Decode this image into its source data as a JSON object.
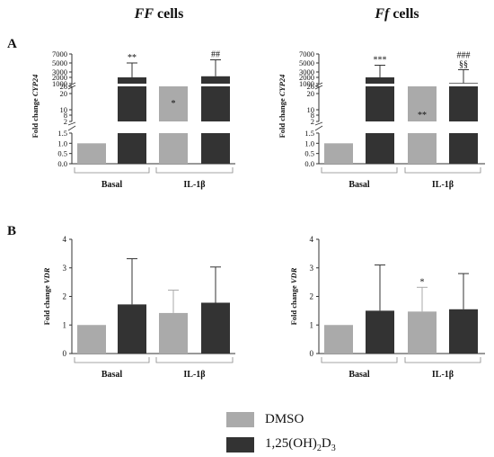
{
  "colors": {
    "dmso": "#aaaaaa",
    "vitd": "#333333"
  },
  "headers": {
    "left": {
      "italic": "FF",
      "rest": " cells"
    },
    "right": {
      "italic": "Ff",
      "rest": " cells"
    }
  },
  "panels": {
    "A": "A",
    "B": "B"
  },
  "legend": {
    "dmso": "DMSO",
    "vitd": {
      "base": "1,25(OH)",
      "sub1": "2",
      "mid": "D",
      "sub2": "3"
    }
  },
  "chart_data": [
    {
      "id": "A-FF",
      "type": "bar",
      "ylabel": "Fold change CYP24",
      "yticks_lower": [
        "0.0",
        "0.5",
        "1.0",
        "1.5"
      ],
      "yticks_upper": [
        "2",
        "8",
        "10",
        "20",
        "26",
        "1000",
        "2000",
        "3000",
        "5000",
        "7000"
      ],
      "groups": [
        "Basal",
        "IL-1β"
      ],
      "series": [
        {
          "name": "DMSO",
          "values": [
            1.0,
            4.5
          ],
          "error": [
            0,
            6
          ],
          "stars": [
            "",
            "*"
          ]
        },
        {
          "name": "1,25(OH)2D3",
          "values": [
            2000,
            2200
          ],
          "error": [
            3000,
            3500
          ],
          "stars": [
            "**",
            "##"
          ]
        }
      ]
    },
    {
      "id": "A-Ff",
      "type": "bar",
      "ylabel": "Fold change CYP24",
      "yticks_lower": [
        "0.0",
        "0.5",
        "1.0",
        "1.5"
      ],
      "yticks_upper": [
        "2",
        "8",
        "10",
        "20",
        "26",
        "1000",
        "2000",
        "3000",
        "5000",
        "7000"
      ],
      "groups": [
        "Basal",
        "IL-1β"
      ],
      "series": [
        {
          "name": "DMSO",
          "values": [
            1.0,
            2.2
          ],
          "error": [
            0,
            0.8
          ],
          "stars": [
            "",
            "**"
          ]
        },
        {
          "name": "1,25(OH)2D3",
          "values": [
            2000,
            1100
          ],
          "error": [
            2500,
            2400
          ],
          "stars": [
            "***",
            "###\n§§"
          ]
        }
      ]
    },
    {
      "id": "B-FF",
      "type": "bar",
      "ylabel": "Fold change VDR",
      "yticks": [
        "0",
        "1",
        "2",
        "3",
        "4"
      ],
      "ylim": [
        0,
        4
      ],
      "groups": [
        "Basal",
        "IL-1β"
      ],
      "series": [
        {
          "name": "DMSO",
          "values": [
            1.0,
            1.42
          ],
          "error": [
            0,
            0.8
          ],
          "stars": [
            "",
            ""
          ]
        },
        {
          "name": "1,25(OH)2D3",
          "values": [
            1.72,
            1.78
          ],
          "error": [
            1.6,
            1.25
          ],
          "stars": [
            "",
            ""
          ]
        }
      ]
    },
    {
      "id": "B-Ff",
      "type": "bar",
      "ylabel": "Fold change VDR",
      "yticks": [
        "0",
        "1",
        "2",
        "3",
        "4"
      ],
      "ylim": [
        0,
        4
      ],
      "groups": [
        "Basal",
        "IL-1β"
      ],
      "series": [
        {
          "name": "DMSO",
          "values": [
            1.0,
            1.47
          ],
          "error": [
            0,
            0.85
          ],
          "stars": [
            "",
            "*"
          ]
        },
        {
          "name": "1,25(OH)2D3",
          "values": [
            1.5,
            1.55
          ],
          "error": [
            1.6,
            1.25
          ],
          "stars": [
            "",
            ""
          ]
        }
      ]
    }
  ]
}
